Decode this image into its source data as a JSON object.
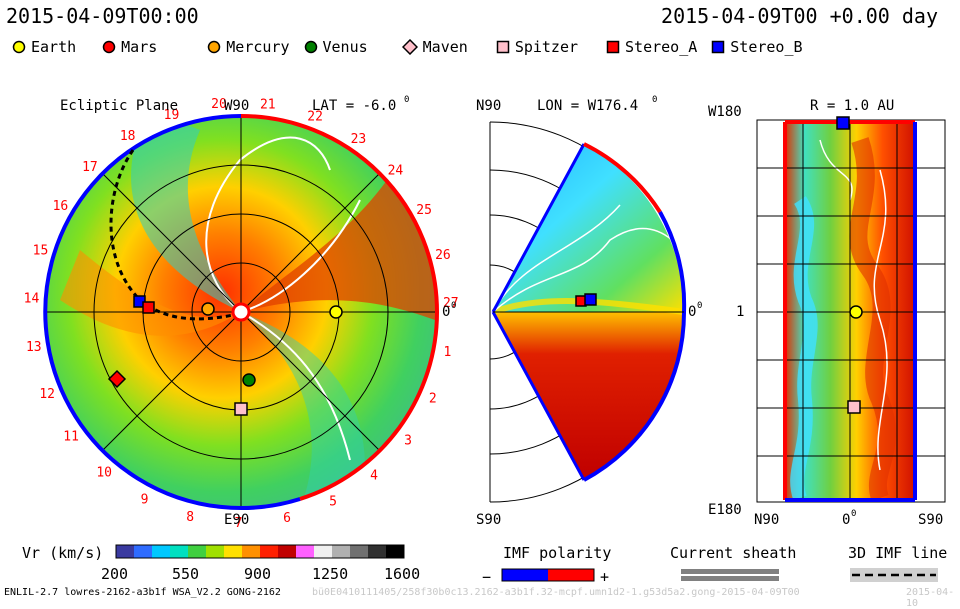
{
  "header": {
    "datetime": "2015-04-09T00:00",
    "run_time": "2015-04-09T00 +0.00 day"
  },
  "legend": [
    {
      "name": "Earth",
      "shape": "circle",
      "color": "#ffff00"
    },
    {
      "name": "Mars",
      "shape": "circle",
      "color": "#ff0000"
    },
    {
      "name": "Mercury",
      "shape": "circle",
      "color": "#ffa500"
    },
    {
      "name": "Venus",
      "shape": "circle",
      "color": "#008000"
    },
    {
      "name": "Maven",
      "shape": "diamond",
      "color": "#ffc0cb"
    },
    {
      "name": "Spitzer",
      "shape": "square",
      "color": "#ffc0cb"
    },
    {
      "name": "Stereo_A",
      "shape": "square",
      "color": "#ff0000"
    },
    {
      "name": "Stereo_B",
      "shape": "square",
      "color": "#0000ff"
    }
  ],
  "panel_ecliptic": {
    "title": "Ecliptic Plane",
    "top_label": "W90",
    "bottom_label": "E90",
    "right_label": "0",
    "right_label_sup": "0",
    "lat_label": "LAT = -6.0",
    "lat_label_sup": "0",
    "carrington_numbers": [
      "20",
      "21",
      "22",
      "23",
      "24",
      "25",
      "26",
      "27",
      "1",
      "2",
      "3",
      "4",
      "5",
      "6",
      "7",
      "8",
      "9",
      "10",
      "11",
      "12",
      "13",
      "14",
      "15",
      "16",
      "17",
      "18",
      "19"
    ]
  },
  "panel_meridional": {
    "top_label": "N90",
    "bottom_label": "S90",
    "right_label": "0",
    "right_label_sup": "0",
    "lon_label": "LON = W176.4",
    "lon_label_sup": "0"
  },
  "panel_radial": {
    "r_label": "R = 1.0 AU",
    "left_top": "W180",
    "left_mid": "1",
    "left_bottom": "E180",
    "x_left": "N90",
    "x_mid": "0",
    "x_mid_sup": "0",
    "x_right": "S90"
  },
  "colorbar": {
    "label": "Vr (km/s)",
    "ticks": [
      "200",
      "550",
      "900",
      "1250",
      "1600"
    ],
    "colors": [
      "#3a3aa0",
      "#2f6cff",
      "#00c8ff",
      "#00e0c0",
      "#40d040",
      "#a0e000",
      "#ffe000",
      "#ff9000",
      "#ff2000",
      "#c00000",
      "#ff60ff",
      "#f0f0f0",
      "#b0b0b0",
      "#707070",
      "#303030",
      "#000000"
    ]
  },
  "imf_polarity": {
    "label": "IMF polarity",
    "minus": "−",
    "plus": "+",
    "neg_color": "#0000ff",
    "pos_color": "#ff0000"
  },
  "current_sheath": {
    "label": "Current sheath"
  },
  "imf_line": {
    "label": "3D IMF line"
  },
  "footer": {
    "model": "ENLIL-2.7 lowres-2162-a3b1f WSA_V2.2 GONG-2162",
    "run_id": "bü0E0410111405/258f30b0c13.2162-a3b1f.32-mcpf.umn1d2-1.g53d5a2.gong-2015-04-09T00",
    "stamp": "2015-04-10"
  }
}
